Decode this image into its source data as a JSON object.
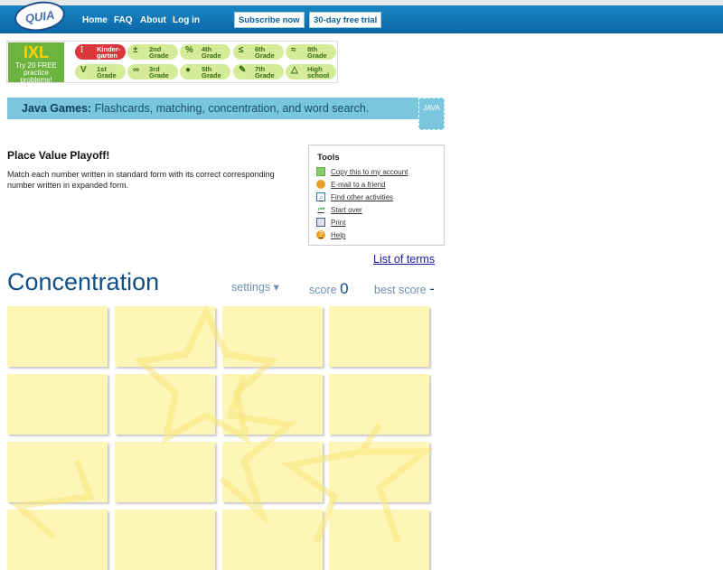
{
  "header": {
    "logo": "QUIA",
    "nav": [
      "Home",
      "FAQ",
      "About",
      "Log in"
    ],
    "subscribe": "Subscribe now",
    "trial": "30-day free trial"
  },
  "ixl": {
    "logo": "IXL",
    "promo": "Try 20 FREE practice problems!",
    "grades": [
      {
        "label": "Kinder-garten",
        "icon": "dots"
      },
      {
        "label": "2nd Grade",
        "icon": "±"
      },
      {
        "label": "4th Grade",
        "icon": "%"
      },
      {
        "label": "6th Grade",
        "icon": "≤"
      },
      {
        "label": "8th Grade",
        "icon": "≈"
      },
      {
        "label": "1st Grade",
        "icon": "V"
      },
      {
        "label": "3rd Grade",
        "icon": "∞"
      },
      {
        "label": "5th Grade",
        "icon": "apple"
      },
      {
        "label": "7th Grade",
        "icon": "pencil"
      },
      {
        "label": "High school",
        "icon": "△"
      }
    ]
  },
  "banner": {
    "bold": "Java Games:",
    "text": " Flashcards, matching, concentration, and word search.",
    "badge": "JAVA"
  },
  "activity": {
    "title": "Place Value Playoff!",
    "description": "Match each number written in standard form with its correct corresponding number written in expanded form."
  },
  "tools": {
    "heading": "Tools",
    "items": [
      "Copy this to my account",
      "E-mail to a friend",
      "Find other activities",
      "Start over",
      "Print",
      "Help"
    ]
  },
  "game": {
    "list_of_terms": "List of terms",
    "title": "Concentration",
    "settings": "settings ▾",
    "score_label": "score",
    "score": "0",
    "best_label": "best score",
    "best": "-"
  }
}
